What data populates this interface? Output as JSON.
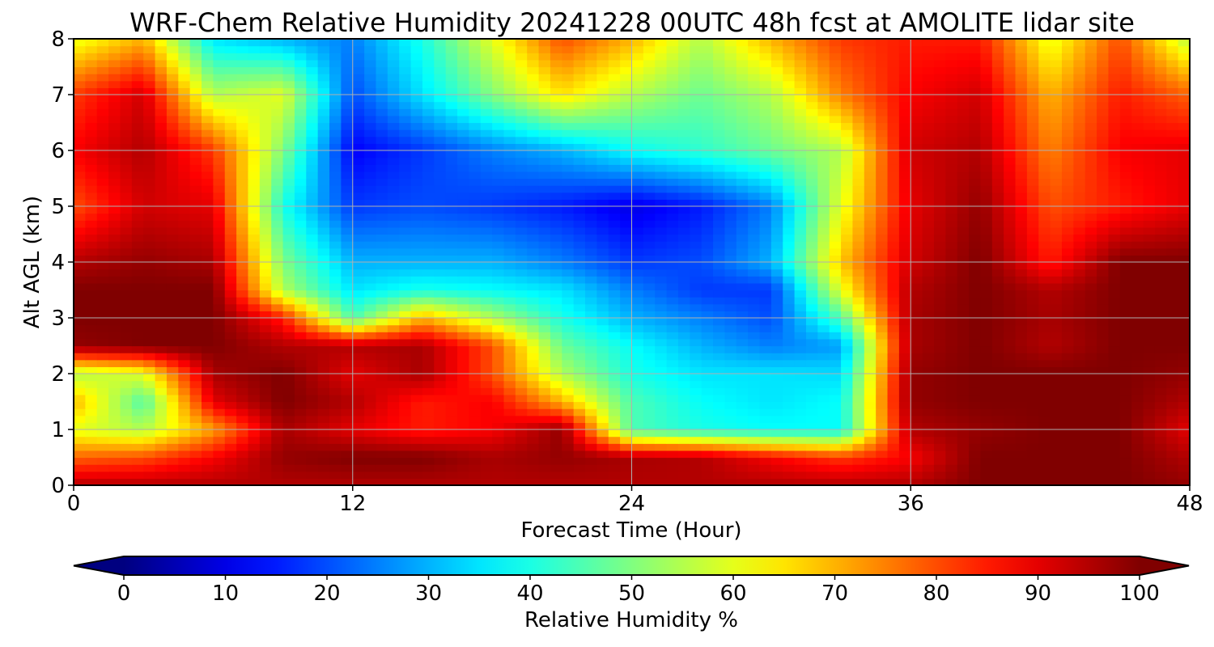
{
  "chart_data": {
    "type": "heatmap",
    "title": "WRF-Chem Relative Humidity 20241228 00UTC 48h fcst at AMOLITE lidar site",
    "xlabel": "Forecast Time (Hour)",
    "ylabel": "Alt AGL (km)",
    "xlim": [
      0,
      48
    ],
    "ylim": [
      0,
      8
    ],
    "xticks": [
      0,
      12,
      24,
      36,
      48
    ],
    "yticks": [
      0,
      1,
      2,
      3,
      4,
      5,
      6,
      7,
      8
    ],
    "grid": true,
    "colorbar": {
      "label": "Relative Humidity %",
      "range": [
        0,
        100
      ],
      "ticks": [
        0,
        10,
        20,
        30,
        40,
        50,
        60,
        70,
        80,
        90,
        100
      ],
      "colormap": "jet",
      "extend": "both",
      "placement": "bottom"
    },
    "x": [
      0,
      3,
      6,
      9,
      12,
      15,
      18,
      21,
      24,
      27,
      30,
      33,
      36,
      39,
      42,
      45,
      48
    ],
    "y": [
      0,
      0.5,
      1,
      1.5,
      2,
      2.5,
      3,
      3.5,
      4,
      5,
      6,
      7,
      8
    ],
    "z": [
      [
        95,
        95,
        95,
        95,
        95,
        95,
        95,
        95,
        95,
        95,
        95,
        95,
        95,
        100,
        100,
        100,
        98
      ],
      [
        78,
        80,
        88,
        98,
        100,
        100,
        96,
        98,
        96,
        95,
        88,
        82,
        88,
        100,
        100,
        100,
        95
      ],
      [
        60,
        55,
        72,
        96,
        90,
        85,
        88,
        98,
        45,
        40,
        38,
        38,
        95,
        98,
        100,
        100,
        90
      ],
      [
        70,
        45,
        90,
        100,
        95,
        85,
        88,
        70,
        45,
        38,
        35,
        38,
        98,
        100,
        100,
        100,
        95
      ],
      [
        55,
        60,
        96,
        100,
        90,
        96,
        80,
        55,
        40,
        35,
        35,
        34,
        98,
        100,
        100,
        100,
        98
      ],
      [
        98,
        100,
        100,
        95,
        95,
        96,
        80,
        48,
        38,
        30,
        25,
        28,
        96,
        100,
        95,
        100,
        100
      ],
      [
        100,
        100,
        100,
        85,
        45,
        70,
        55,
        40,
        30,
        25,
        20,
        45,
        96,
        100,
        96,
        100,
        100
      ],
      [
        100,
        100,
        100,
        55,
        35,
        40,
        38,
        35,
        25,
        18,
        18,
        60,
        95,
        100,
        95,
        100,
        100
      ],
      [
        95,
        98,
        96,
        50,
        30,
        30,
        30,
        25,
        18,
        20,
        30,
        68,
        92,
        100,
        85,
        100,
        100
      ],
      [
        80,
        92,
        90,
        40,
        18,
        20,
        18,
        15,
        10,
        15,
        25,
        60,
        90,
        98,
        80,
        85,
        90
      ],
      [
        88,
        95,
        82,
        50,
        12,
        18,
        25,
        30,
        38,
        42,
        48,
        55,
        92,
        95,
        75,
        88,
        90
      ],
      [
        82,
        92,
        55,
        60,
        20,
        35,
        50,
        65,
        55,
        48,
        55,
        75,
        88,
        92,
        70,
        85,
        78
      ],
      [
        60,
        70,
        35,
        30,
        25,
        40,
        60,
        80,
        70,
        55,
        70,
        82,
        85,
        85,
        60,
        80,
        55
      ]
    ]
  }
}
